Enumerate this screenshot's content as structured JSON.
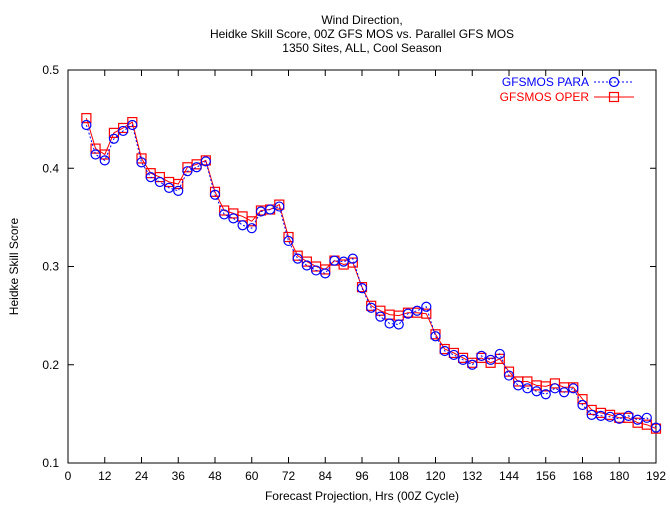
{
  "chart_data": {
    "type": "line",
    "title": [
      "Wind Direction,",
      "Heidke Skill Score, 00Z GFS MOS vs. Parallel GFS MOS",
      "1350 Sites, ALL, Cool Season"
    ],
    "xlabel": "Forecast Projection, Hrs (00Z Cycle)",
    "ylabel": "Heidke Skill Score",
    "xlim": [
      0,
      192
    ],
    "ylim": [
      0.1,
      0.5
    ],
    "xticks": [
      "0",
      "12",
      "24",
      "36",
      "48",
      "60",
      "72",
      "84",
      "96",
      "108",
      "120",
      "132",
      "144",
      "156",
      "168",
      "180",
      "192"
    ],
    "yticks": [
      "0.1",
      "0.2",
      "0.3",
      "0.4",
      "0.5"
    ],
    "legend_position": "top-right",
    "x": [
      6,
      9,
      12,
      15,
      18,
      21,
      24,
      27,
      30,
      33,
      36,
      39,
      42,
      45,
      48,
      51,
      54,
      57,
      60,
      63,
      66,
      69,
      72,
      75,
      78,
      81,
      84,
      87,
      90,
      93,
      96,
      99,
      102,
      105,
      108,
      111,
      114,
      117,
      120,
      123,
      126,
      129,
      132,
      135,
      138,
      141,
      144,
      147,
      150,
      153,
      156,
      159,
      162,
      165,
      168,
      171,
      174,
      177,
      180,
      183,
      186,
      189,
      192
    ],
    "series": [
      {
        "name": "GFSMOS PARA",
        "color": "#0000ff",
        "marker": "circle",
        "dash": "dotted",
        "values": [
          0.444,
          0.414,
          0.408,
          0.43,
          0.438,
          0.444,
          0.406,
          0.391,
          0.386,
          0.38,
          0.377,
          0.397,
          0.401,
          0.407,
          0.373,
          0.353,
          0.349,
          0.342,
          0.339,
          0.356,
          0.358,
          0.361,
          0.326,
          0.308,
          0.301,
          0.296,
          0.293,
          0.306,
          0.305,
          0.308,
          0.278,
          0.258,
          0.249,
          0.242,
          0.241,
          0.252,
          0.255,
          0.259,
          0.229,
          0.214,
          0.21,
          0.205,
          0.2,
          0.209,
          0.205,
          0.211,
          0.189,
          0.179,
          0.176,
          0.173,
          0.17,
          0.176,
          0.172,
          0.176,
          0.159,
          0.149,
          0.148,
          0.147,
          0.145,
          0.148,
          0.144,
          0.146,
          0.136
        ]
      },
      {
        "name": "GFSMOS OPER",
        "color": "#ff0000",
        "marker": "square",
        "dash": "solid",
        "values": [
          0.451,
          0.42,
          0.414,
          0.436,
          0.441,
          0.447,
          0.41,
          0.395,
          0.391,
          0.386,
          0.384,
          0.401,
          0.404,
          0.408,
          0.376,
          0.357,
          0.354,
          0.351,
          0.346,
          0.357,
          0.358,
          0.363,
          0.33,
          0.311,
          0.305,
          0.3,
          0.297,
          0.306,
          0.302,
          0.304,
          0.279,
          0.26,
          0.255,
          0.251,
          0.25,
          0.253,
          0.253,
          0.252,
          0.231,
          0.216,
          0.212,
          0.207,
          0.202,
          0.207,
          0.202,
          0.206,
          0.193,
          0.183,
          0.183,
          0.179,
          0.178,
          0.181,
          0.177,
          0.177,
          0.165,
          0.154,
          0.151,
          0.149,
          0.146,
          0.146,
          0.141,
          0.139,
          0.135
        ]
      }
    ]
  }
}
